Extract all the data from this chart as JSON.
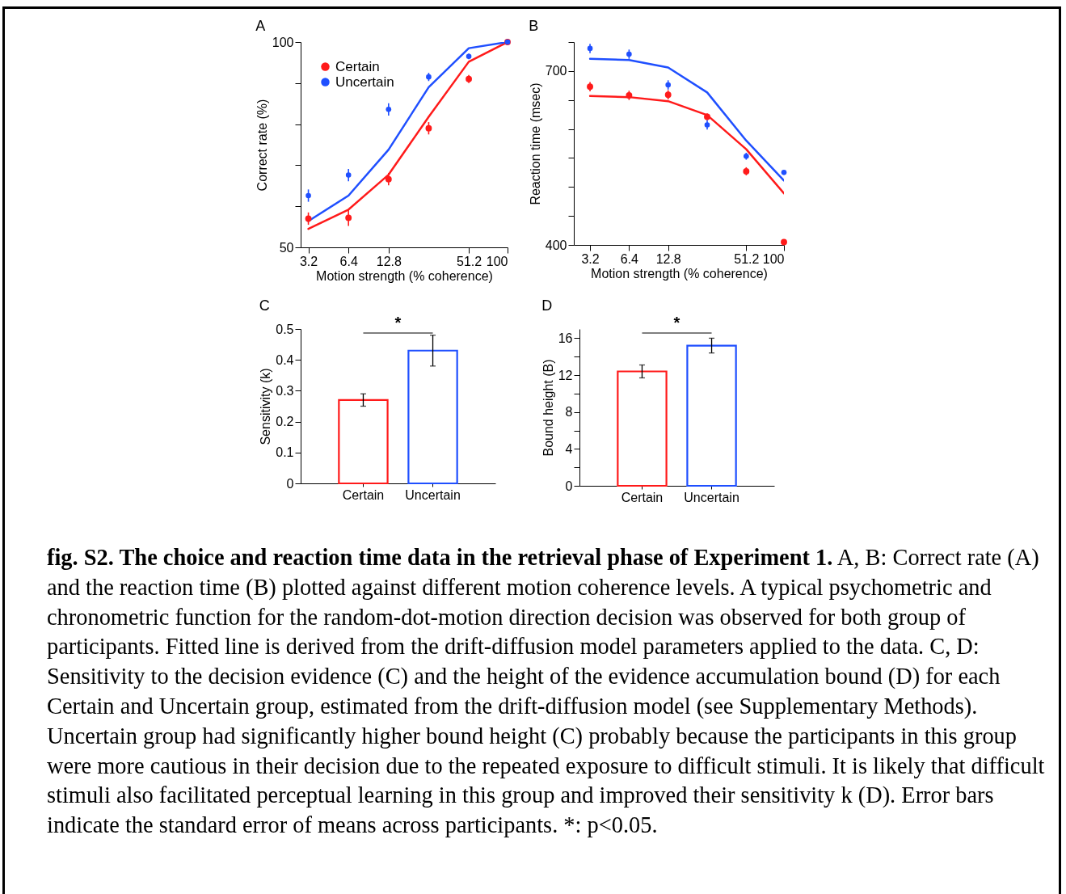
{
  "chart_data": [
    {
      "type": "scatter",
      "title": "A",
      "xlabel": "Motion strength (% coherence)",
      "ylabel": "Correct rate (%)",
      "log": "x",
      "xlim": [
        2.8,
        100
      ],
      "xticks": [
        3.2,
        6.4,
        12.8,
        51.2,
        100
      ],
      "ylim": [
        50,
        100
      ],
      "yticks": [
        50,
        {
          "value": 60,
          "label": null
        },
        {
          "value": 70,
          "label": null
        },
        {
          "value": 80,
          "label": null
        },
        {
          "value": 90,
          "label": null
        },
        100
      ],
      "grid": false,
      "legend": "top left",
      "marker": "circle",
      "x": [
        3.2,
        6.4,
        12.8,
        25.6,
        51.2,
        100
      ],
      "series": [
        {
          "type": "line",
          "color": "#ff1a1a",
          "marker": "none",
          "values": [
            54.5,
            59.2,
            67.7,
            81.8,
            95.2,
            100
          ]
        },
        {
          "type": "line",
          "color": "#1f4fff",
          "marker": "none",
          "values": [
            56.4,
            62.6,
            73.8,
            89.0,
            98.5,
            100
          ]
        },
        {
          "type": "scatter",
          "name": "Certain",
          "color": "#ff1a1a",
          "values": [
            57.0,
            57.2,
            66.6,
            79.0,
            91.0,
            100
          ],
          "errors": [
            1.5,
            2,
            1.5,
            1.5,
            1,
            null
          ]
        },
        {
          "type": "scatter",
          "name": "Uncertain",
          "color": "#1f4fff",
          "values": [
            62.6,
            67.6,
            83.6,
            91.5,
            96.5,
            100
          ],
          "errors": [
            1.5,
            1.5,
            1.5,
            1,
            0.7,
            null
          ]
        }
      ],
      "annotations": [
        "fig. S2. The choice and reaction time data in the retrieval phase of Experiment 1.",
        "A, B: Correct rate (A) and the reaction time (B) plotted against different motion coherence levels. A typical psychometric and chronometric function for the random-dot-motion direction decision was observed for both group of participants. Fitted line is derived from the drift-diffusion model parameters applied to the data. C, D: Sensitivity to the decision evidence (C) and the height of the evidence accumulation bound (D) for each Certain and Uncertain group, estimated from the drift-diffusion model (see Supplementary Methods). Uncertain group had significantly higher bound height (C) probably because the participants in this group were more cautious in their decision due to the repeated exposure to difficult stimuli. It is likely that difficult stimuli also facilitated perceptual learning in this group and improved their sensitivity k (D). Error bars indicate the standard error of means across participants. *: p<0.05."
      ]
    },
    {
      "type": "scatter",
      "title": "B",
      "xlabel": "Motion strength (% coherence)",
      "ylabel": "Reaction time (msec)",
      "log": "x",
      "xlim": [
        2.4,
        100
      ],
      "xticks": [
        3.2,
        6.4,
        12.8,
        51.2,
        100
      ],
      "ylim": [
        400,
        750
      ],
      "yticks": [
        400,
        {
          "value": 450,
          "label": null
        },
        {
          "value": 500,
          "label": null
        },
        {
          "value": 550,
          "label": null
        },
        {
          "value": 600,
          "label": null
        },
        {
          "value": 650,
          "label": null
        },
        700,
        {
          "value": 750,
          "label": null
        }
      ],
      "grid": false,
      "marker": "circle",
      "x": [
        3.2,
        6.4,
        12.8,
        25.6,
        51.2,
        100
      ],
      "series": [
        {
          "type": "line",
          "color": "#ff1a1a",
          "marker": "none",
          "values": [
            657,
            655,
            648,
            624,
            565,
            489
          ]
        },
        {
          "type": "line",
          "color": "#1f4fff",
          "marker": "none",
          "values": [
            721,
            719,
            706,
            663,
            580,
            511
          ]
        },
        {
          "type": "scatter",
          "color": "#ff1a1a",
          "values": [
            673,
            658,
            659,
            621,
            527,
            405
          ],
          "errors": [
            8,
            8,
            8,
            6,
            7,
            null
          ]
        },
        {
          "type": "scatter",
          "color": "#1f4fff",
          "values": [
            739,
            729,
            676,
            607,
            553,
            525
          ],
          "errors": [
            8,
            8,
            8,
            8,
            6,
            3
          ]
        }
      ]
    },
    {
      "type": "bar",
      "title": "C",
      "ylabel": "Sensitivity (k)",
      "categories": [
        "Certain",
        "Uncertain"
      ],
      "values": [
        0.27,
        0.43
      ],
      "errors": [
        0.02,
        0.05
      ],
      "colors": [
        "#ff1a1a",
        "#1f4fff"
      ],
      "ylim": [
        0,
        0.5
      ],
      "yticks": [
        0,
        0.1,
        0.2,
        0.3,
        0.4,
        0.5
      ],
      "grid": false,
      "annotations": [
        "*"
      ]
    },
    {
      "type": "bar",
      "title": "D",
      "ylabel": "Bound height (B)",
      "categories": [
        "Certain",
        "Uncertain"
      ],
      "values": [
        12.4,
        15.2
      ],
      "errors": [
        0.7,
        0.8
      ],
      "colors": [
        "#ff1a1a",
        "#1f4fff"
      ],
      "ylim": [
        0,
        17
      ],
      "yticks": [
        0,
        {
          "value": 2,
          "label": null
        },
        4,
        {
          "value": 6,
          "label": null
        },
        8,
        {
          "value": 10,
          "label": null
        },
        12,
        {
          "value": 14,
          "label": null
        },
        16
      ],
      "grid": false,
      "annotations": [
        "*"
      ]
    }
  ]
}
